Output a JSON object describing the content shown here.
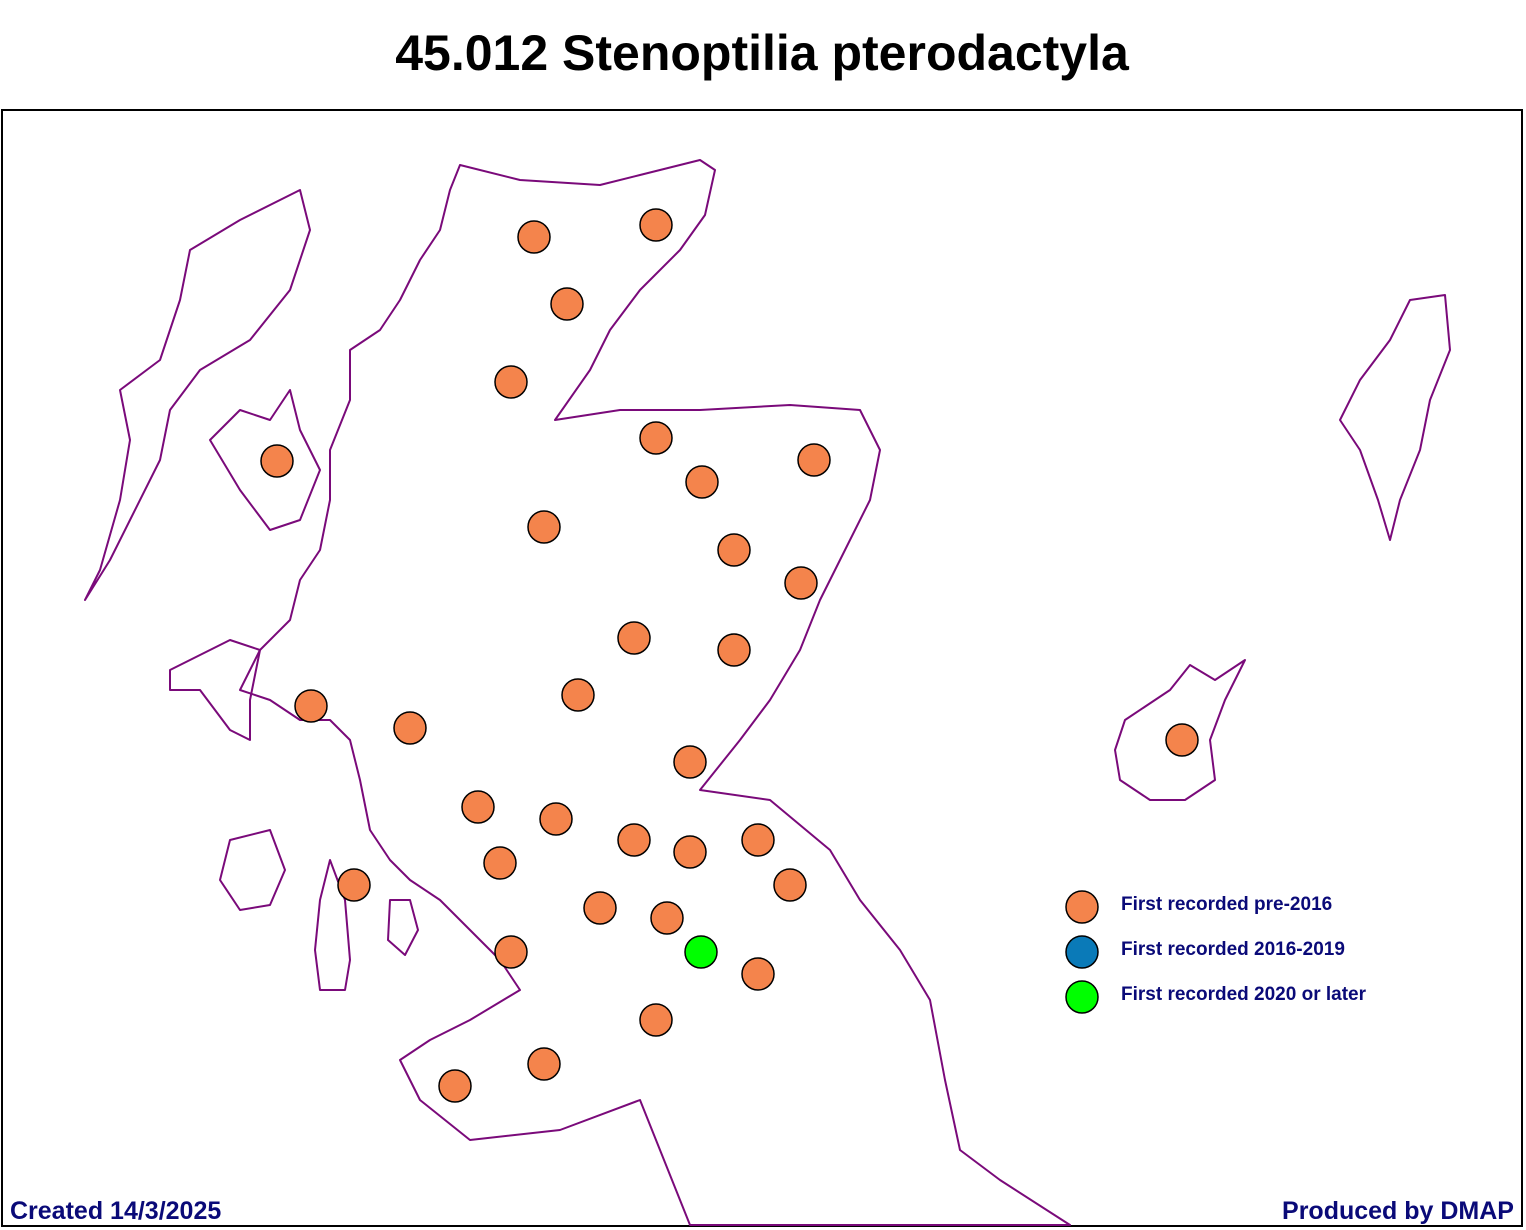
{
  "header": {
    "title": "45.012 Stenoptilia pterodactyla"
  },
  "legend": [
    {
      "label": "First recorded pre-2016",
      "color": "#f4844c"
    },
    {
      "label": "First recorded 2016-2019",
      "color": "#0a7ab8"
    },
    {
      "label": "First recorded 2020 or later",
      "color": "#00ff00"
    }
  ],
  "footer": {
    "created": "Created 14/3/2025",
    "produced": "Produced by DMAP"
  }
}
